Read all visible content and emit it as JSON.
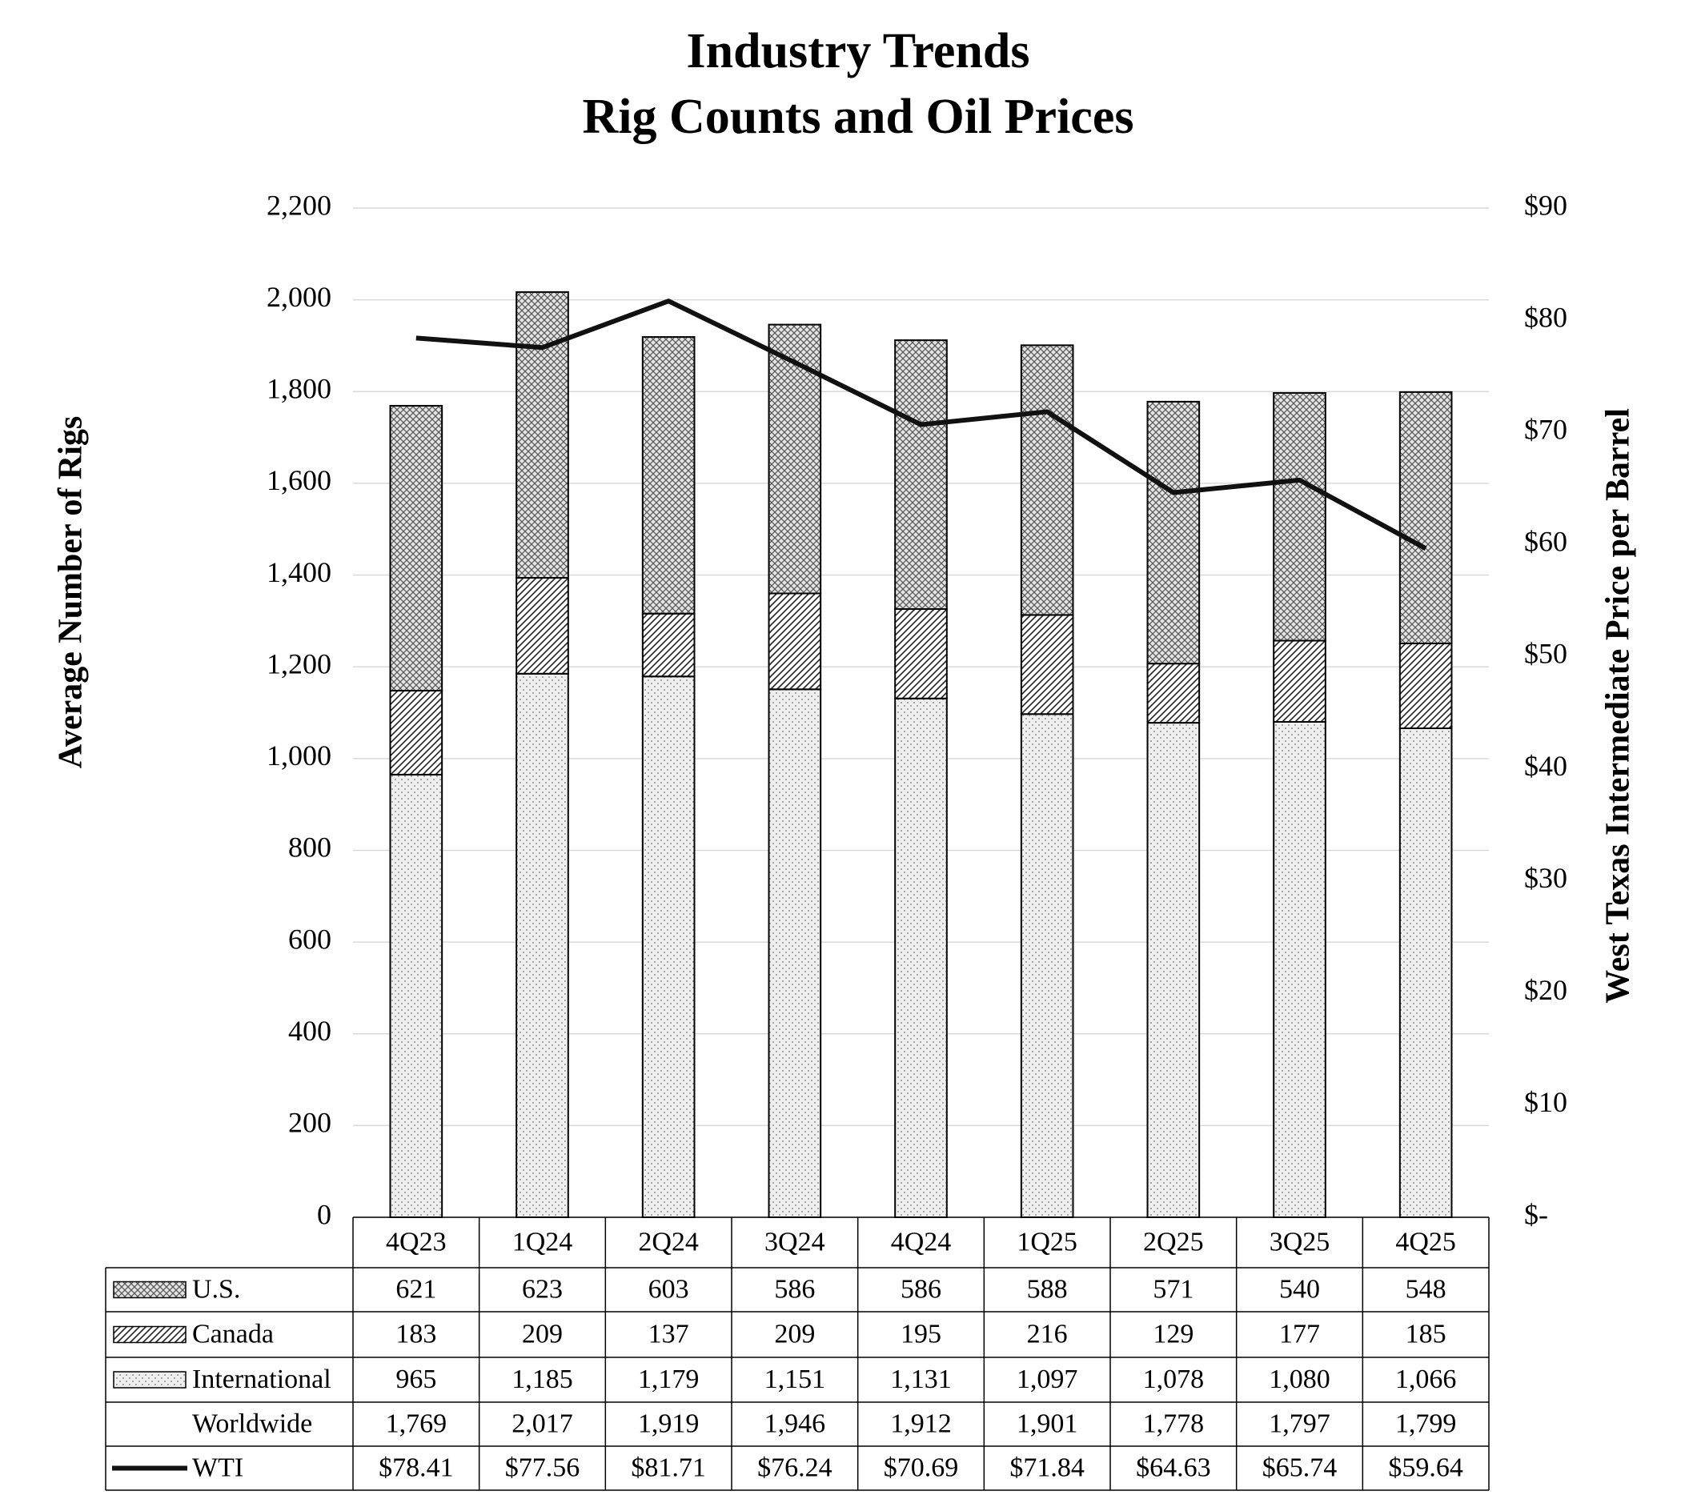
{
  "chart_data": {
    "type": "bar",
    "title": "Industry Trends",
    "subtitle": "Rig Counts and Oil Prices",
    "y_label": "Average Number of Rigs",
    "y2_label": "West Texas Intermediate Price per Barrel",
    "categories": [
      "4Q23",
      "1Q24",
      "2Q24",
      "3Q24",
      "4Q24",
      "1Q25",
      "2Q25",
      "3Q25",
      "4Q25"
    ],
    "series": [
      {
        "name": "U.S.",
        "type": "bar",
        "pattern": "crosshatch",
        "color": "#e4e4e4",
        "values": [
          621,
          623,
          603,
          586,
          586,
          588,
          571,
          540,
          548
        ]
      },
      {
        "name": "Canada",
        "type": "bar",
        "pattern": "diagonal",
        "color": "#ffffff",
        "values": [
          183,
          209,
          137,
          209,
          195,
          216,
          129,
          177,
          185
        ]
      },
      {
        "name": "International",
        "type": "bar",
        "pattern": "dots",
        "color": "#eeeeee",
        "values": [
          965,
          1185,
          1179,
          1151,
          1131,
          1097,
          1078,
          1080,
          1066
        ],
        "value_labels": [
          "965",
          "1,185",
          "1,179",
          "1,151",
          "1,131",
          "1,097",
          "1,078",
          "1,080",
          "1,066"
        ]
      },
      {
        "name": "Worldwide",
        "type": "table",
        "values": [
          1769,
          2017,
          1919,
          1946,
          1912,
          1901,
          1778,
          1797,
          1799
        ],
        "value_labels": [
          "1,769",
          "2,017",
          "1,919",
          "1,946",
          "1,912",
          "1,901",
          "1,778",
          "1,797",
          "1,799"
        ]
      },
      {
        "name": "WTI",
        "type": "line",
        "axis": "y2",
        "color": "#111111",
        "values": [
          78.41,
          77.56,
          81.71,
          76.24,
          70.69,
          71.84,
          64.63,
          65.74,
          59.64
        ],
        "value_labels": [
          "$78.41",
          "$77.56",
          "$81.71",
          "$76.24",
          "$70.69",
          "$71.84",
          "$64.63",
          "$65.74",
          "$59.64"
        ]
      }
    ],
    "ylim": [
      0,
      2200
    ],
    "yticks": [
      0,
      200,
      400,
      600,
      800,
      {
        "value": 1000,
        "label": "1,000"
      },
      {
        "value": 1200,
        "label": "1,200"
      },
      {
        "value": 1400,
        "label": "1,400"
      },
      {
        "value": 1600,
        "label": "1,600"
      },
      {
        "value": 1800,
        "label": "1,800"
      },
      {
        "value": 2000,
        "label": "2,000"
      },
      {
        "value": 2200,
        "label": "2,200"
      }
    ],
    "y2lim": [
      0,
      90
    ],
    "y2ticks": [
      {
        "value": 0,
        "label": "$-"
      },
      {
        "value": 10,
        "label": "$10"
      },
      {
        "value": 20,
        "label": "$20"
      },
      {
        "value": 30,
        "label": "$30"
      },
      {
        "value": 40,
        "label": "$40"
      },
      {
        "value": 50,
        "label": "$50"
      },
      {
        "value": 60,
        "label": "$60"
      },
      {
        "value": 70,
        "label": "$70"
      },
      {
        "value": 80,
        "label": "$80"
      },
      {
        "value": 90,
        "label": "$90"
      }
    ],
    "grid": true
  }
}
